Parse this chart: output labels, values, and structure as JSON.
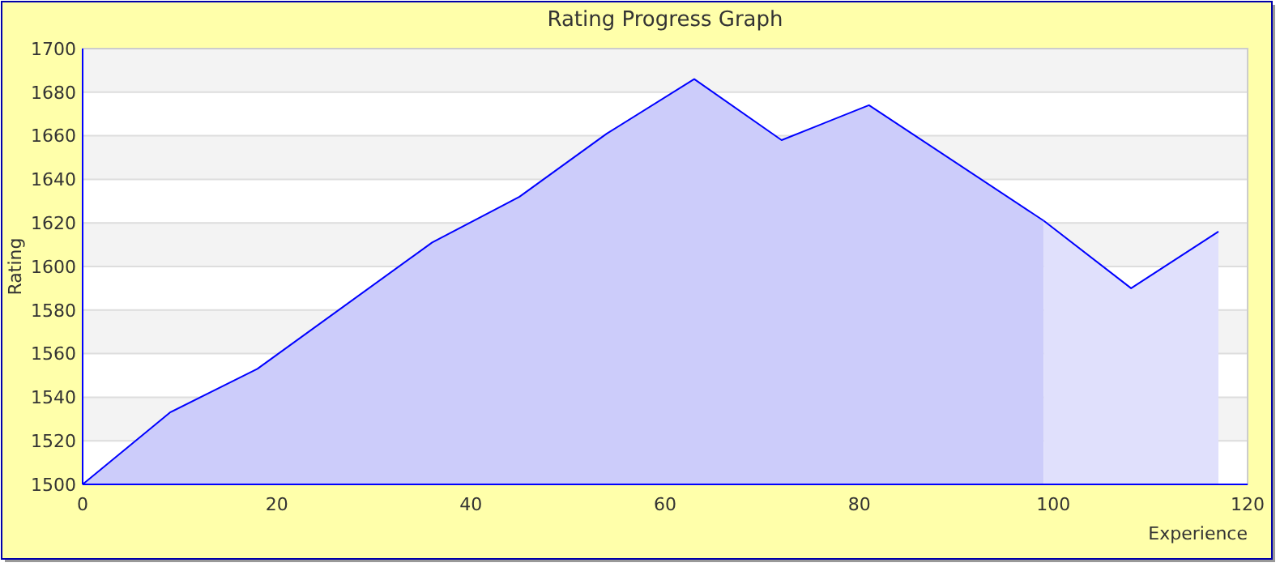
{
  "chart_data": {
    "type": "area",
    "title": "Rating Progress Graph",
    "xlabel": "Experience",
    "ylabel": "Rating",
    "xlim": [
      0,
      120
    ],
    "xticks": [
      0,
      20,
      40,
      60,
      80,
      100,
      120
    ],
    "ylim": [
      1500,
      1700
    ],
    "yticks": [
      1500,
      1520,
      1540,
      1560,
      1580,
      1600,
      1620,
      1640,
      1660,
      1680,
      1700
    ],
    "grid": "y",
    "series": [
      {
        "color": "#ccccfa",
        "x": [
          0,
          9,
          18,
          36,
          45,
          54,
          63,
          72,
          81,
          99
        ],
        "values": [
          1500,
          1533,
          1553,
          1611,
          1632,
          1661,
          1686,
          1658,
          1674,
          1621
        ]
      },
      {
        "color": "#e0e0fc",
        "x": [
          99,
          108,
          117
        ],
        "values": [
          1621,
          1590,
          1616
        ]
      }
    ]
  }
}
